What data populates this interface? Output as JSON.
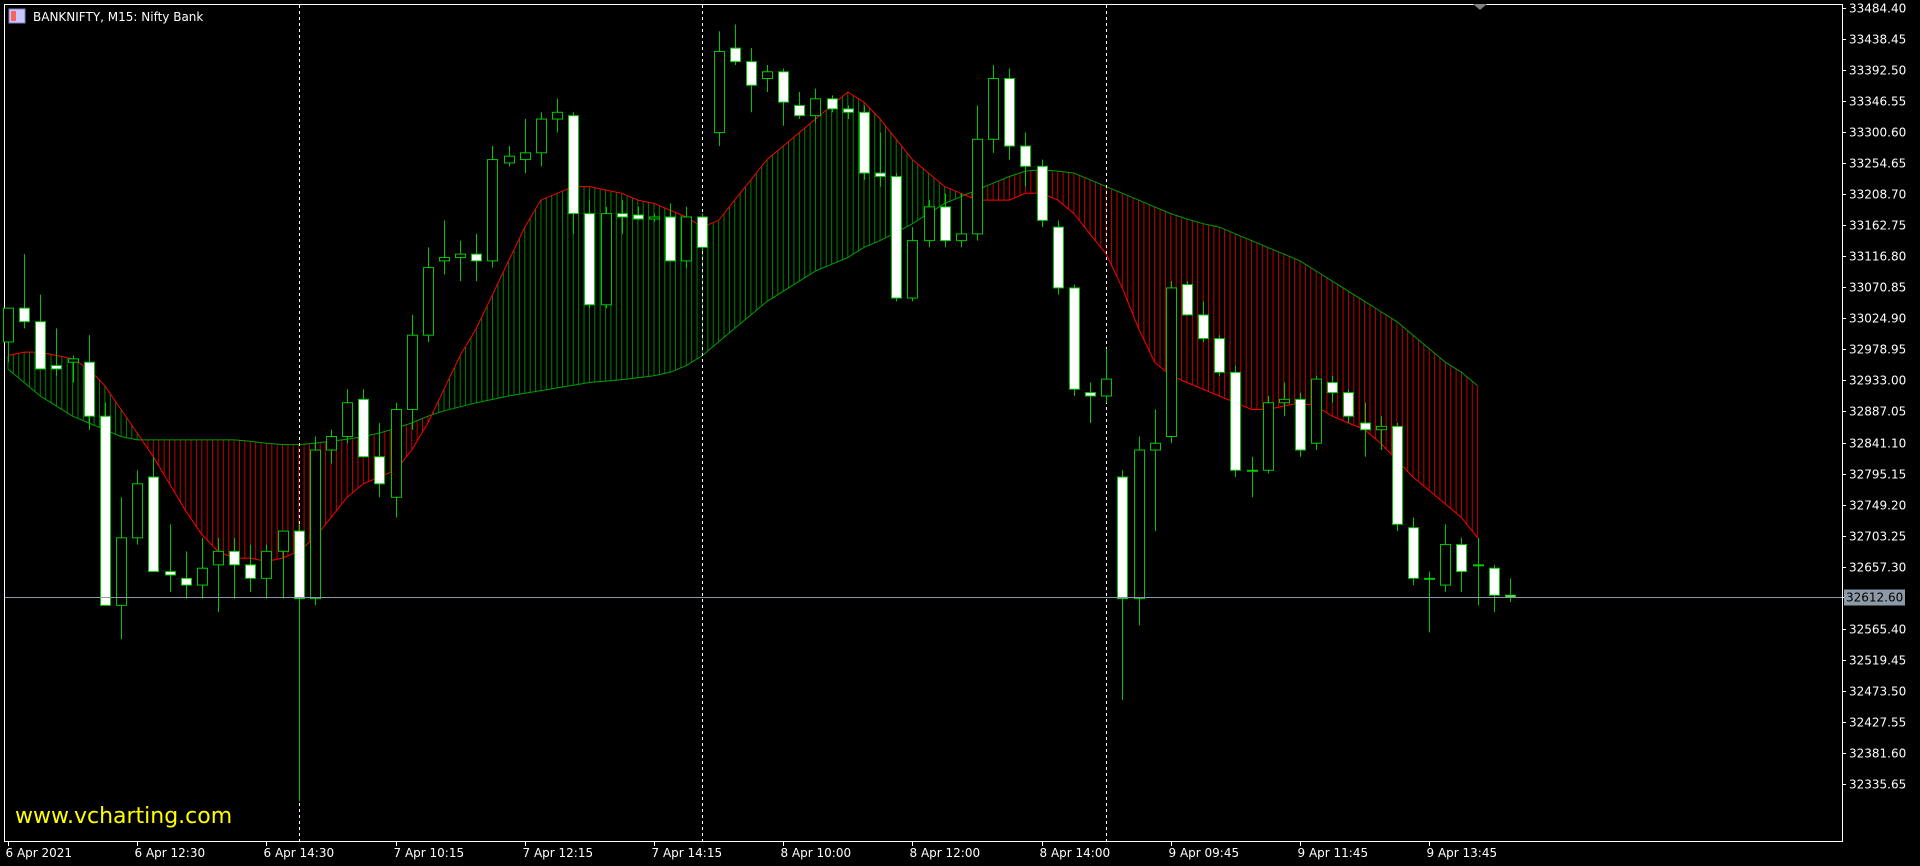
{
  "chart_title": "BANKNIFTY, M15:  Nifty Bank",
  "watermark": "www.vcharting.com",
  "current_price_label": "32612.60",
  "colors": {
    "background": "#000000",
    "candle_up_body": "#000000",
    "candle_down_body": "#ffffff",
    "wick": "#00c800",
    "candle_border": "#00c800",
    "fast_line": "#ff0000",
    "slow_line": "#00a000",
    "cloud_bull_hatch": "#008000",
    "cloud_bear_hatch": "#c00000",
    "separator": "#ffffff",
    "price_line": "#8c9aa8",
    "axis": "#ffffff",
    "watermark": "#ffff00"
  },
  "chart_data": {
    "type": "candlestick",
    "title": "BANKNIFTY, M15:  Nifty Bank",
    "symbol": "BANKNIFTY",
    "timeframe": "M15",
    "description": "Nifty Bank",
    "ylim": [
      32300,
      33484.4
    ],
    "y_ticks": [
      "33484.40",
      "33438.45",
      "33392.50",
      "33346.55",
      "33300.60",
      "33254.65",
      "33208.70",
      "33162.75",
      "33116.80",
      "33070.85",
      "33024.90",
      "32978.95",
      "32933.00",
      "32887.05",
      "32841.10",
      "32795.15",
      "32749.20",
      "32703.25",
      "32657.30",
      "32612.60",
      "32565.40",
      "32519.45",
      "32473.50",
      "32427.55",
      "32381.60",
      "32335.65"
    ],
    "x_labels": [
      "6 Apr 2021",
      "6 Apr 12:30",
      "6 Apr 14:30",
      "7 Apr 10:15",
      "7 Apr 12:15",
      "7 Apr 14:15",
      "8 Apr 10:00",
      "8 Apr 12:00",
      "8 Apr 14:00",
      "9 Apr 09:45",
      "9 Apr 11:45",
      "9 Apr 13:45"
    ],
    "x_label_bars": [
      0,
      8,
      16,
      24,
      32,
      40,
      48,
      56,
      64,
      72,
      80,
      88
    ],
    "day_separators_bars": [
      18,
      43,
      68
    ],
    "grid": false,
    "current_price": 32612.6,
    "candles": [
      {
        "o": 32990,
        "h": 33040,
        "l": 32960,
        "c": 33040
      },
      {
        "o": 33040,
        "h": 33120,
        "l": 33010,
        "c": 33020
      },
      {
        "o": 33020,
        "h": 33060,
        "l": 32950,
        "c": 32950
      },
      {
        "o": 32955,
        "h": 33010,
        "l": 32940,
        "c": 32950
      },
      {
        "o": 32960,
        "h": 32970,
        "l": 32930,
        "c": 32965
      },
      {
        "o": 32960,
        "h": 33000,
        "l": 32860,
        "c": 32880
      },
      {
        "o": 32880,
        "h": 32900,
        "l": 32600,
        "c": 32600
      },
      {
        "o": 32600,
        "h": 32760,
        "l": 32550,
        "c": 32700
      },
      {
        "o": 32700,
        "h": 32800,
        "l": 32690,
        "c": 32780
      },
      {
        "o": 32790,
        "h": 32820,
        "l": 32650,
        "c": 32650
      },
      {
        "o": 32650,
        "h": 32720,
        "l": 32620,
        "c": 32645
      },
      {
        "o": 32640,
        "h": 32680,
        "l": 32610,
        "c": 32630
      },
      {
        "o": 32630,
        "h": 32700,
        "l": 32610,
        "c": 32655
      },
      {
        "o": 32660,
        "h": 32700,
        "l": 32590,
        "c": 32680
      },
      {
        "o": 32680,
        "h": 32700,
        "l": 32610,
        "c": 32660
      },
      {
        "o": 32660,
        "h": 32690,
        "l": 32620,
        "c": 32640
      },
      {
        "o": 32640,
        "h": 32690,
        "l": 32610,
        "c": 32680
      },
      {
        "o": 32680,
        "h": 32710,
        "l": 32610,
        "c": 32710
      },
      {
        "o": 32710,
        "h": 32720,
        "l": 32310,
        "c": 32610
      },
      {
        "o": 32610,
        "h": 32850,
        "l": 32600,
        "c": 32830
      },
      {
        "o": 32830,
        "h": 32860,
        "l": 32810,
        "c": 32850
      },
      {
        "o": 32850,
        "h": 32920,
        "l": 32840,
        "c": 32900
      },
      {
        "o": 32905,
        "h": 32920,
        "l": 32820,
        "c": 32820
      },
      {
        "o": 32820,
        "h": 32870,
        "l": 32760,
        "c": 32780
      },
      {
        "o": 32760,
        "h": 32900,
        "l": 32730,
        "c": 32890
      },
      {
        "o": 32890,
        "h": 33030,
        "l": 32860,
        "c": 33000
      },
      {
        "o": 33000,
        "h": 33130,
        "l": 32990,
        "c": 33100
      },
      {
        "o": 33110,
        "h": 33170,
        "l": 33090,
        "c": 33115
      },
      {
        "o": 33115,
        "h": 33140,
        "l": 33080,
        "c": 33120
      },
      {
        "o": 33120,
        "h": 33150,
        "l": 33080,
        "c": 33110
      },
      {
        "o": 33110,
        "h": 33280,
        "l": 33100,
        "c": 33260
      },
      {
        "o": 33255,
        "h": 33280,
        "l": 33250,
        "c": 33265
      },
      {
        "o": 33260,
        "h": 33320,
        "l": 33240,
        "c": 33270
      },
      {
        "o": 33270,
        "h": 33330,
        "l": 33250,
        "c": 33320
      },
      {
        "o": 33320,
        "h": 33350,
        "l": 33300,
        "c": 33330
      },
      {
        "o": 33325,
        "h": 33330,
        "l": 33150,
        "c": 33180
      },
      {
        "o": 33180,
        "h": 33200,
        "l": 33040,
        "c": 33045
      },
      {
        "o": 33045,
        "h": 33190,
        "l": 33040,
        "c": 33180
      },
      {
        "o": 33180,
        "h": 33200,
        "l": 33150,
        "c": 33175
      },
      {
        "o": 33178,
        "h": 33190,
        "l": 33170,
        "c": 33172
      },
      {
        "o": 33172,
        "h": 33180,
        "l": 33168,
        "c": 33175
      },
      {
        "o": 33175,
        "h": 33195,
        "l": 33110,
        "c": 33110
      },
      {
        "o": 33110,
        "h": 33190,
        "l": 33100,
        "c": 33175
      },
      {
        "o": 33175,
        "h": 33180,
        "l": 33125,
        "c": 33130
      },
      {
        "o": 33300,
        "h": 33450,
        "l": 33280,
        "c": 33420
      },
      {
        "o": 33425,
        "h": 33460,
        "l": 33400,
        "c": 33405
      },
      {
        "o": 33405,
        "h": 33425,
        "l": 33330,
        "c": 33370
      },
      {
        "o": 33380,
        "h": 33400,
        "l": 33360,
        "c": 33390
      },
      {
        "o": 33390,
        "h": 33395,
        "l": 33310,
        "c": 33345
      },
      {
        "o": 33340,
        "h": 33360,
        "l": 33320,
        "c": 33325
      },
      {
        "o": 33325,
        "h": 33365,
        "l": 33315,
        "c": 33350
      },
      {
        "o": 33350,
        "h": 33355,
        "l": 33330,
        "c": 33335
      },
      {
        "o": 33335,
        "h": 33340,
        "l": 33320,
        "c": 33330
      },
      {
        "o": 33330,
        "h": 33340,
        "l": 33230,
        "c": 33240
      },
      {
        "o": 33240,
        "h": 33300,
        "l": 33220,
        "c": 33235
      },
      {
        "o": 33235,
        "h": 33240,
        "l": 33050,
        "c": 33055
      },
      {
        "o": 33055,
        "h": 33160,
        "l": 33050,
        "c": 33140
      },
      {
        "o": 33140,
        "h": 33200,
        "l": 33130,
        "c": 33190
      },
      {
        "o": 33190,
        "h": 33210,
        "l": 33130,
        "c": 33140
      },
      {
        "o": 33140,
        "h": 33210,
        "l": 33130,
        "c": 33150
      },
      {
        "o": 33150,
        "h": 33340,
        "l": 33140,
        "c": 33290
      },
      {
        "o": 33290,
        "h": 33400,
        "l": 33270,
        "c": 33380
      },
      {
        "o": 33380,
        "h": 33395,
        "l": 33260,
        "c": 33280
      },
      {
        "o": 33280,
        "h": 33300,
        "l": 33220,
        "c": 33250
      },
      {
        "o": 33250,
        "h": 33260,
        "l": 33160,
        "c": 33170
      },
      {
        "o": 33160,
        "h": 33170,
        "l": 33060,
        "c": 33070
      },
      {
        "o": 33070,
        "h": 33075,
        "l": 32910,
        "c": 32920
      },
      {
        "o": 32915,
        "h": 32930,
        "l": 32870,
        "c": 32910
      },
      {
        "o": 32910,
        "h": 32980,
        "l": 32900,
        "c": 32935
      },
      {
        "o": 32790,
        "h": 32800,
        "l": 32460,
        "c": 32610
      },
      {
        "o": 32610,
        "h": 32850,
        "l": 32570,
        "c": 32830
      },
      {
        "o": 32830,
        "h": 32890,
        "l": 32710,
        "c": 32840
      },
      {
        "o": 32850,
        "h": 33080,
        "l": 32840,
        "c": 33070
      },
      {
        "o": 33075,
        "h": 33080,
        "l": 33030,
        "c": 33030
      },
      {
        "o": 33030,
        "h": 33050,
        "l": 32990,
        "c": 32995
      },
      {
        "o": 32995,
        "h": 33000,
        "l": 32940,
        "c": 32945
      },
      {
        "o": 32945,
        "h": 32955,
        "l": 32790,
        "c": 32800
      },
      {
        "o": 32800,
        "h": 32820,
        "l": 32760,
        "c": 32800
      },
      {
        "o": 32800,
        "h": 32910,
        "l": 32795,
        "c": 32900
      },
      {
        "o": 32900,
        "h": 32930,
        "l": 32880,
        "c": 32905
      },
      {
        "o": 32905,
        "h": 32915,
        "l": 32820,
        "c": 32830
      },
      {
        "o": 32840,
        "h": 32940,
        "l": 32830,
        "c": 32935
      },
      {
        "o": 32930,
        "h": 32940,
        "l": 32900,
        "c": 32915
      },
      {
        "o": 32915,
        "h": 32920,
        "l": 32870,
        "c": 32880
      },
      {
        "o": 32870,
        "h": 32900,
        "l": 32820,
        "c": 32860
      },
      {
        "o": 32860,
        "h": 32880,
        "l": 32830,
        "c": 32865
      },
      {
        "o": 32865,
        "h": 32870,
        "l": 32710,
        "c": 32720
      },
      {
        "o": 32715,
        "h": 32730,
        "l": 32630,
        "c": 32640
      },
      {
        "o": 32640,
        "h": 32650,
        "l": 32560,
        "c": 32640
      },
      {
        "o": 32630,
        "h": 32720,
        "l": 32620,
        "c": 32690
      },
      {
        "o": 32690,
        "h": 32700,
        "l": 32620,
        "c": 32650
      },
      {
        "o": 32660,
        "h": 32700,
        "l": 32600,
        "c": 32660
      },
      {
        "o": 32655,
        "h": 32660,
        "l": 32590,
        "c": 32615
      },
      {
        "o": 32615,
        "h": 32640,
        "l": 32605,
        "c": 32612.6
      }
    ],
    "fast_line": [
      32970,
      32975,
      32975,
      32970,
      32965,
      32950,
      32925,
      32890,
      32855,
      32820,
      32780,
      32740,
      32705,
      32680,
      32670,
      32670,
      32665,
      32670,
      32680,
      32700,
      32730,
      32760,
      32780,
      32790,
      32800,
      32830,
      32870,
      32920,
      32970,
      33010,
      33060,
      33110,
      33160,
      33200,
      33210,
      33220,
      33220,
      33215,
      33210,
      33200,
      33195,
      33185,
      33175,
      33160,
      33170,
      33200,
      33230,
      33260,
      33280,
      33300,
      33320,
      33340,
      33360,
      33345,
      33320,
      33290,
      33260,
      33240,
      33220,
      33210,
      33200,
      33200,
      33200,
      33210,
      33210,
      33200,
      33180,
      33150,
      33120,
      33070,
      33010,
      32960,
      32940,
      32930,
      32920,
      32910,
      32900,
      32890,
      32890,
      32895,
      32900,
      32895,
      32880,
      32870,
      32860,
      32840,
      32815,
      32790,
      32770,
      32750,
      32730,
      32700
    ],
    "slow_line": [
      32950,
      32930,
      32910,
      32895,
      32880,
      32870,
      32860,
      32850,
      32845,
      32845,
      32845,
      32845,
      32845,
      32845,
      32845,
      32843,
      32840,
      32838,
      32838,
      32840,
      32843,
      32846,
      32850,
      32855,
      32862,
      32870,
      32880,
      32888,
      32894,
      32900,
      32905,
      32910,
      32914,
      32918,
      32922,
      32926,
      32930,
      32932,
      32934,
      32937,
      32940,
      32945,
      32955,
      32970,
      32990,
      33010,
      33030,
      33050,
      33065,
      33080,
      33095,
      33105,
      33115,
      33130,
      33140,
      33152,
      33165,
      33180,
      33195,
      33205,
      33215,
      33225,
      33235,
      33243,
      33245,
      33243,
      33240,
      33230,
      33220,
      33210,
      33200,
      33190,
      33180,
      33172,
      33165,
      33160,
      33150,
      33140,
      33130,
      33120,
      33110,
      33095,
      33080,
      33065,
      33050,
      33035,
      33020,
      33000,
      32980,
      32960,
      32945,
      32925
    ]
  }
}
